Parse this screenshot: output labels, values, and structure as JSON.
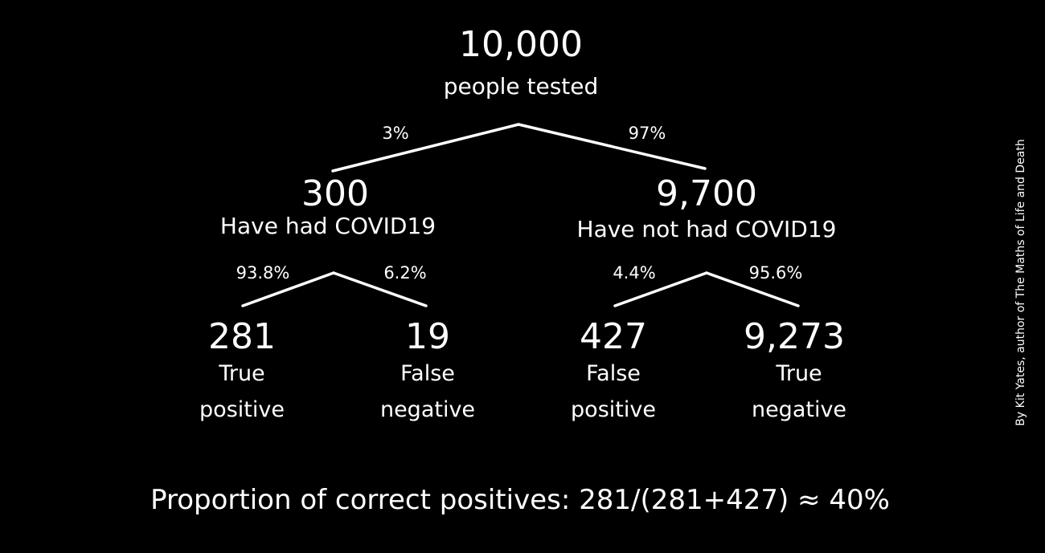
{
  "root": {
    "count": "10,000",
    "label": "people tested"
  },
  "branch_top": {
    "left_pct": "3%",
    "right_pct": "97%"
  },
  "left": {
    "count": "300",
    "label": "Have had COVID19",
    "left_pct": "93.8%",
    "right_pct": "6.2%",
    "leaf_left": {
      "count": "281",
      "line1": "True",
      "line2": "positive"
    },
    "leaf_right": {
      "count": "19",
      "line1": "False",
      "line2": "negative"
    }
  },
  "right": {
    "count": "9,700",
    "label": "Have not had COVID19",
    "left_pct": "4.4%",
    "right_pct": "95.6%",
    "leaf_left": {
      "count": "427",
      "line1": "False",
      "line2": "positive"
    },
    "leaf_right": {
      "count": "9,273",
      "line1": "True",
      "line2": "negative"
    }
  },
  "summary": "Proportion of correct positives: 281/(281+427) ≈ 40%",
  "credit": "By Kit Yates, author of The Maths of Life and Death"
}
